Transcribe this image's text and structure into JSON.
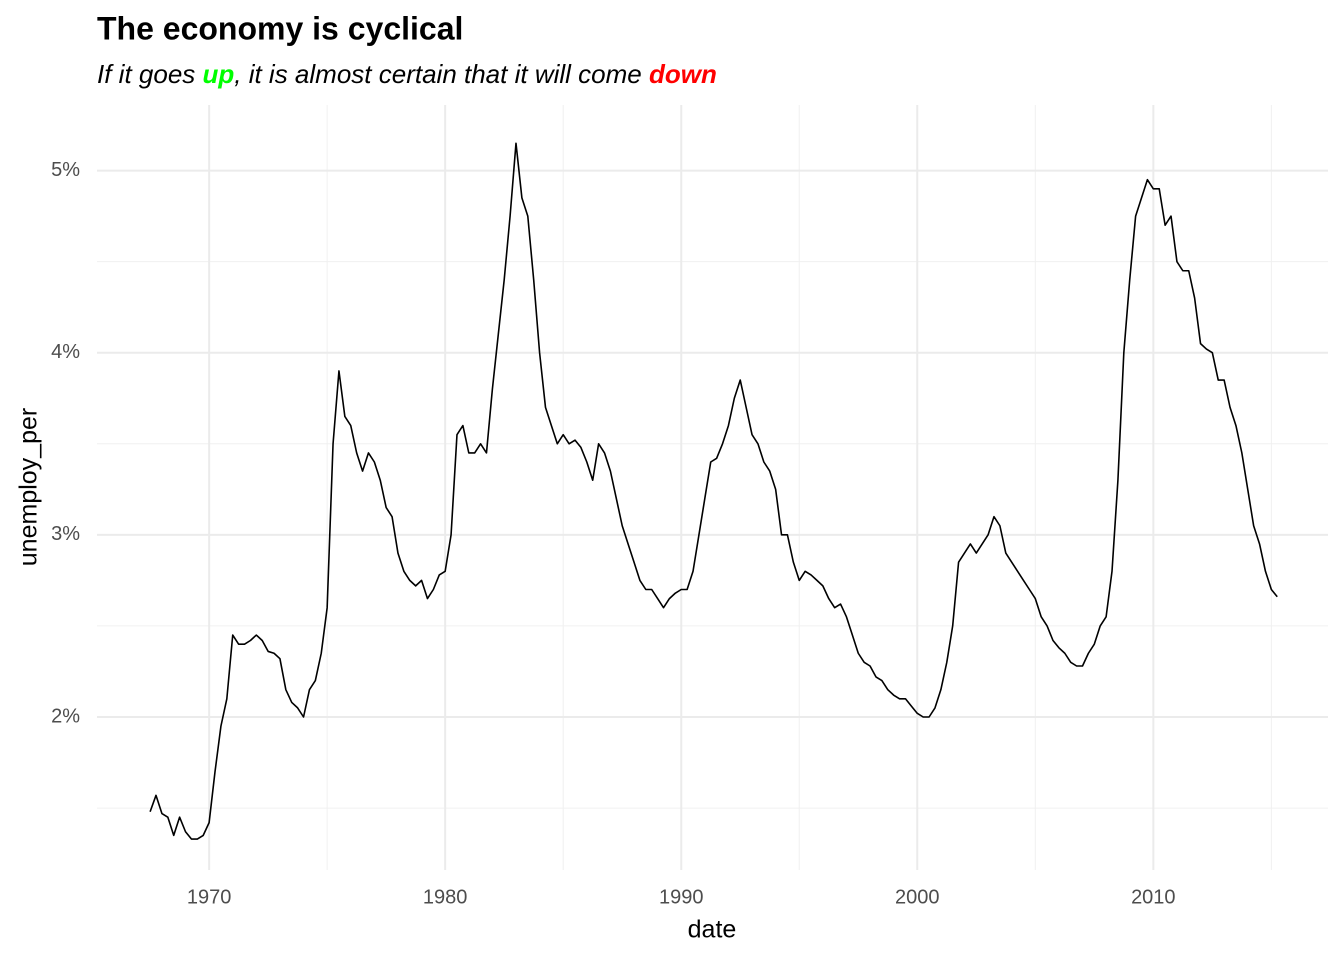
{
  "chart_data": {
    "type": "line",
    "title": "The economy is cyclical",
    "subtitle": [
      {
        "text": "If it goes ",
        "color": "#000000",
        "bold": false
      },
      {
        "text": "up",
        "color": "#00ff00",
        "bold": true
      },
      {
        "text": ", it is almost certain that it will come ",
        "color": "#000000",
        "bold": false
      },
      {
        "text": "down",
        "color": "#ff0000",
        "bold": true
      }
    ],
    "x_label": "date",
    "y_label": "unemploy_per",
    "xlim": [
      1965.25,
      2017.4
    ],
    "ylim": [
      1.16,
      5.36
    ],
    "xticks": [
      1970,
      1980,
      1990,
      2000,
      2010
    ],
    "xminor": [
      1975,
      1985,
      1995,
      2005,
      2015
    ],
    "yticks": [
      {
        "value": 2,
        "label": "2%"
      },
      {
        "value": 3,
        "label": "3%"
      },
      {
        "value": 4,
        "label": "4%"
      },
      {
        "value": 5,
        "label": "5%"
      }
    ],
    "yminor": [
      1.5,
      2.5,
      3.5,
      4.5
    ],
    "grid": true,
    "series": [
      {
        "name": "unemploy_per",
        "color": "#000000",
        "x": [
          1967.5,
          1967.75,
          1968,
          1968.25,
          1968.5,
          1968.75,
          1969,
          1969.25,
          1969.5,
          1969.75,
          1970,
          1970.25,
          1970.5,
          1970.75,
          1971,
          1971.25,
          1971.5,
          1971.75,
          1972,
          1972.25,
          1972.5,
          1972.75,
          1973,
          1973.25,
          1973.5,
          1973.75,
          1974,
          1974.25,
          1974.5,
          1974.75,
          1975,
          1975.25,
          1975.5,
          1975.75,
          1976,
          1976.25,
          1976.5,
          1976.75,
          1977,
          1977.25,
          1977.5,
          1977.75,
          1978,
          1978.25,
          1978.5,
          1978.75,
          1979,
          1979.25,
          1979.5,
          1979.75,
          1980,
          1980.25,
          1980.5,
          1980.75,
          1981,
          1981.25,
          1981.5,
          1981.75,
          1982,
          1982.25,
          1982.5,
          1982.75,
          1983,
          1983.25,
          1983.5,
          1983.75,
          1984,
          1984.25,
          1984.5,
          1984.75,
          1985,
          1985.25,
          1985.5,
          1985.75,
          1986,
          1986.25,
          1986.5,
          1986.75,
          1987,
          1987.25,
          1987.5,
          1987.75,
          1988,
          1988.25,
          1988.5,
          1988.75,
          1989,
          1989.25,
          1989.5,
          1989.75,
          1990,
          1990.25,
          1990.5,
          1990.75,
          1991,
          1991.25,
          1991.5,
          1991.75,
          1992,
          1992.25,
          1992.5,
          1992.75,
          1993,
          1993.25,
          1993.5,
          1993.75,
          1994,
          1994.25,
          1994.5,
          1994.75,
          1995,
          1995.25,
          1995.5,
          1995.75,
          1996,
          1996.25,
          1996.5,
          1996.75,
          1997,
          1997.25,
          1997.5,
          1997.75,
          1998,
          1998.25,
          1998.5,
          1998.75,
          1999,
          1999.25,
          1999.5,
          1999.75,
          2000,
          2000.25,
          2000.5,
          2000.75,
          2001,
          2001.25,
          2001.5,
          2001.75,
          2002,
          2002.25,
          2002.5,
          2002.75,
          2003,
          2003.25,
          2003.5,
          2003.75,
          2004,
          2004.25,
          2004.5,
          2004.75,
          2005,
          2005.25,
          2005.5,
          2005.75,
          2006,
          2006.25,
          2006.5,
          2006.75,
          2007,
          2007.25,
          2007.5,
          2007.75,
          2008,
          2008.25,
          2008.5,
          2008.75,
          2009,
          2009.25,
          2009.5,
          2009.75,
          2010,
          2010.25,
          2010.5,
          2010.75,
          2011,
          2011.25,
          2011.5,
          2011.75,
          2012,
          2012.25,
          2012.5,
          2012.75,
          2013,
          2013.25,
          2013.5,
          2013.75,
          2014,
          2014.25,
          2014.5,
          2014.75,
          2015,
          2015.25
        ],
        "values": [
          1.48,
          1.57,
          1.47,
          1.45,
          1.35,
          1.45,
          1.37,
          1.33,
          1.33,
          1.35,
          1.42,
          1.7,
          1.95,
          2.1,
          2.45,
          2.4,
          2.4,
          2.42,
          2.45,
          2.42,
          2.36,
          2.35,
          2.32,
          2.15,
          2.08,
          2.05,
          2.0,
          2.15,
          2.2,
          2.35,
          2.6,
          3.5,
          3.9,
          3.65,
          3.6,
          3.45,
          3.35,
          3.45,
          3.4,
          3.3,
          3.15,
          3.1,
          2.9,
          2.8,
          2.75,
          2.72,
          2.75,
          2.65,
          2.7,
          2.78,
          2.8,
          3.0,
          3.55,
          3.6,
          3.45,
          3.45,
          3.5,
          3.45,
          3.8,
          4.1,
          4.4,
          4.75,
          5.15,
          4.85,
          4.75,
          4.4,
          4.0,
          3.7,
          3.6,
          3.5,
          3.55,
          3.5,
          3.52,
          3.48,
          3.4,
          3.3,
          3.5,
          3.45,
          3.35,
          3.2,
          3.05,
          2.95,
          2.85,
          2.75,
          2.7,
          2.7,
          2.65,
          2.6,
          2.65,
          2.68,
          2.7,
          2.7,
          2.8,
          3.0,
          3.2,
          3.4,
          3.42,
          3.5,
          3.6,
          3.75,
          3.85,
          3.7,
          3.55,
          3.5,
          3.4,
          3.35,
          3.25,
          3.0,
          3.0,
          2.85,
          2.75,
          2.8,
          2.78,
          2.75,
          2.72,
          2.65,
          2.6,
          2.62,
          2.55,
          2.45,
          2.35,
          2.3,
          2.28,
          2.22,
          2.2,
          2.15,
          2.12,
          2.1,
          2.1,
          2.06,
          2.02,
          2.0,
          2.0,
          2.05,
          2.15,
          2.3,
          2.5,
          2.85,
          2.9,
          2.95,
          2.9,
          2.95,
          3.0,
          3.1,
          3.05,
          2.9,
          2.85,
          2.8,
          2.75,
          2.7,
          2.65,
          2.55,
          2.5,
          2.42,
          2.38,
          2.35,
          2.3,
          2.28,
          2.28,
          2.35,
          2.4,
          2.5,
          2.55,
          2.8,
          3.3,
          4.0,
          4.4,
          4.75,
          4.85,
          4.95,
          4.9,
          4.9,
          4.7,
          4.75,
          4.5,
          4.45,
          4.45,
          4.3,
          4.05,
          4.02,
          4.0,
          3.85,
          3.85,
          3.7,
          3.6,
          3.45,
          3.25,
          3.05,
          2.95,
          2.8,
          2.7,
          2.66
        ]
      }
    ]
  }
}
